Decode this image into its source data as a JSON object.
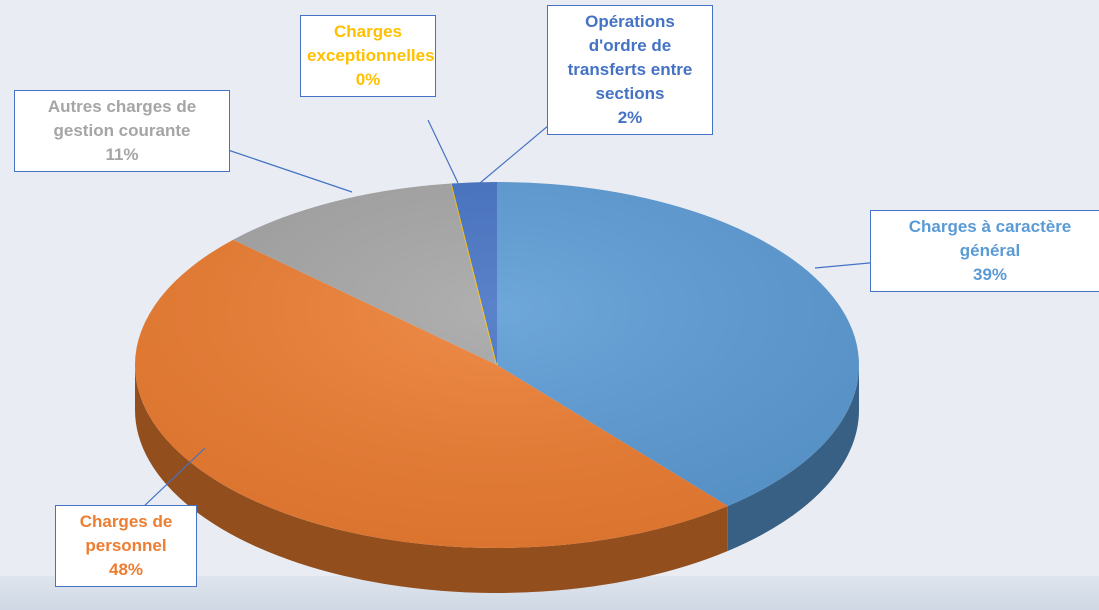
{
  "chart_data": {
    "type": "pie",
    "categories": [
      "Charges à caractère général",
      "Charges de personnel",
      "Autres charges de gestion courante",
      "Charges exceptionnelles",
      "Opérations d'ordre de transferts entre sections"
    ],
    "values": [
      39,
      48,
      11,
      0,
      2
    ],
    "value_labels": [
      "39%",
      "48%",
      "11%",
      "0%",
      "2%"
    ],
    "colors": [
      "#5b9bd5",
      "#ed7d31",
      "#a5a5a5",
      "#ffc000",
      "#4472c4"
    ]
  }
}
